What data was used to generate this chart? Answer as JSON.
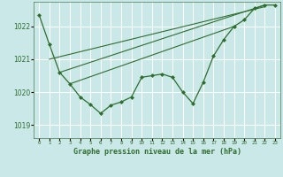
{
  "title": "Graphe pression niveau de la mer (hPa)",
  "background_color": "#cbe8e8",
  "grid_color": "#ffffff",
  "line_color": "#2d6e2d",
  "xlim": [
    -0.5,
    23.5
  ],
  "ylim": [
    1018.6,
    1022.75
  ],
  "yticks": [
    1019,
    1020,
    1021,
    1022
  ],
  "xtick_labels": [
    "0",
    "1",
    "2",
    "3",
    "4",
    "5",
    "6",
    "7",
    "8",
    "9",
    "10",
    "11",
    "12",
    "13",
    "14",
    "15",
    "16",
    "17",
    "18",
    "19",
    "20",
    "21",
    "22",
    "23"
  ],
  "series1_x": [
    0,
    1,
    2,
    3,
    4,
    5,
    6,
    7,
    8,
    9,
    10,
    11,
    12,
    13,
    14,
    15,
    16,
    17,
    18,
    19,
    20,
    21,
    22,
    23
  ],
  "series1_y": [
    1022.35,
    1021.45,
    1020.6,
    1020.25,
    1019.85,
    1019.62,
    1019.35,
    1019.6,
    1019.7,
    1019.85,
    1020.45,
    1020.5,
    1020.55,
    1020.45,
    1020.0,
    1019.65,
    1020.3,
    1021.1,
    1021.6,
    1022.0,
    1022.2,
    1022.55,
    1022.65,
    1022.65
  ],
  "trend1_x": [
    1,
    22
  ],
  "trend1_y": [
    1021.0,
    1022.6
  ],
  "trend2_x": [
    2,
    22
  ],
  "trend2_y": [
    1020.6,
    1022.65
  ],
  "trend3_x": [
    3,
    19
  ],
  "trend3_y": [
    1020.25,
    1022.0
  ]
}
